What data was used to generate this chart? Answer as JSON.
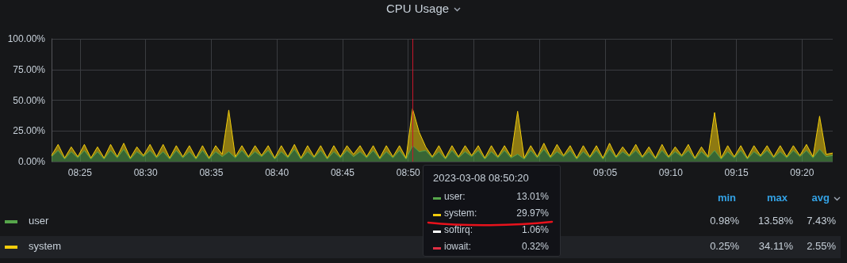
{
  "chart_data": {
    "type": "area",
    "title": "CPU Usage",
    "stacked": true,
    "grid": true,
    "marker": "none",
    "legend": "bottom",
    "xlim": [
      "2023-03-08T08:22:50",
      "2023-03-08T09:22:20"
    ],
    "x": [
      "2023-03-08T08:22:50",
      "2023-03-08T08:23:20",
      "2023-03-08T08:23:50",
      "2023-03-08T08:24:20",
      "2023-03-08T08:24:50",
      "2023-03-08T08:25:20",
      "2023-03-08T08:25:50",
      "2023-03-08T08:26:20",
      "2023-03-08T08:26:50",
      "2023-03-08T08:27:20",
      "2023-03-08T08:27:50",
      "2023-03-08T08:28:20",
      "2023-03-08T08:28:50",
      "2023-03-08T08:29:20",
      "2023-03-08T08:29:50",
      "2023-03-08T08:30:20",
      "2023-03-08T08:30:50",
      "2023-03-08T08:31:20",
      "2023-03-08T08:31:50",
      "2023-03-08T08:32:20",
      "2023-03-08T08:32:50",
      "2023-03-08T08:33:20",
      "2023-03-08T08:33:50",
      "2023-03-08T08:34:20",
      "2023-03-08T08:34:50",
      "2023-03-08T08:35:20",
      "2023-03-08T08:35:50",
      "2023-03-08T08:36:20",
      "2023-03-08T08:36:50",
      "2023-03-08T08:37:20",
      "2023-03-08T08:37:50",
      "2023-03-08T08:38:20",
      "2023-03-08T08:38:50",
      "2023-03-08T08:39:20",
      "2023-03-08T08:39:50",
      "2023-03-08T08:40:20",
      "2023-03-08T08:40:50",
      "2023-03-08T08:41:20",
      "2023-03-08T08:41:50",
      "2023-03-08T08:42:20",
      "2023-03-08T08:42:50",
      "2023-03-08T08:43:20",
      "2023-03-08T08:43:50",
      "2023-03-08T08:44:20",
      "2023-03-08T08:44:50",
      "2023-03-08T08:45:20",
      "2023-03-08T08:45:50",
      "2023-03-08T08:46:20",
      "2023-03-08T08:46:50",
      "2023-03-08T08:47:20",
      "2023-03-08T08:47:50",
      "2023-03-08T08:48:20",
      "2023-03-08T08:48:50",
      "2023-03-08T08:49:20",
      "2023-03-08T08:49:50",
      "2023-03-08T08:50:20",
      "2023-03-08T08:50:50",
      "2023-03-08T08:51:20",
      "2023-03-08T08:51:50",
      "2023-03-08T08:52:20",
      "2023-03-08T08:52:50",
      "2023-03-08T08:53:20",
      "2023-03-08T08:53:50",
      "2023-03-08T08:54:20",
      "2023-03-08T08:54:50",
      "2023-03-08T08:55:20",
      "2023-03-08T08:55:50",
      "2023-03-08T08:56:20",
      "2023-03-08T08:56:50",
      "2023-03-08T08:57:20",
      "2023-03-08T08:57:50",
      "2023-03-08T08:58:20",
      "2023-03-08T08:58:50",
      "2023-03-08T08:59:20",
      "2023-03-08T08:59:50",
      "2023-03-08T09:00:20",
      "2023-03-08T09:00:50",
      "2023-03-08T09:01:20",
      "2023-03-08T09:01:50",
      "2023-03-08T09:02:20",
      "2023-03-08T09:02:50",
      "2023-03-08T09:03:20",
      "2023-03-08T09:03:50",
      "2023-03-08T09:04:20",
      "2023-03-08T09:04:50",
      "2023-03-08T09:05:20",
      "2023-03-08T09:05:50",
      "2023-03-08T09:06:20",
      "2023-03-08T09:06:50",
      "2023-03-08T09:07:20",
      "2023-03-08T09:07:50",
      "2023-03-08T09:08:20",
      "2023-03-08T09:08:50",
      "2023-03-08T09:09:20",
      "2023-03-08T09:09:50",
      "2023-03-08T09:10:20",
      "2023-03-08T09:10:50",
      "2023-03-08T09:11:20",
      "2023-03-08T09:11:50",
      "2023-03-08T09:12:20",
      "2023-03-08T09:12:50",
      "2023-03-08T09:13:20",
      "2023-03-08T09:13:50",
      "2023-03-08T09:14:20",
      "2023-03-08T09:14:50",
      "2023-03-08T09:15:20",
      "2023-03-08T09:15:50",
      "2023-03-08T09:16:20",
      "2023-03-08T09:16:50",
      "2023-03-08T09:17:20",
      "2023-03-08T09:17:50",
      "2023-03-08T09:18:20",
      "2023-03-08T09:18:50",
      "2023-03-08T09:19:20",
      "2023-03-08T09:19:50",
      "2023-03-08T09:20:20",
      "2023-03-08T09:20:50",
      "2023-03-08T09:21:20",
      "2023-03-08T09:21:50",
      "2023-03-08T09:22:20"
    ],
    "xticks": [
      {
        "value": "2023-03-08T08:25",
        "label": "08:25"
      },
      {
        "value": "2023-03-08T08:30",
        "label": "08:30"
      },
      {
        "value": "2023-03-08T08:35",
        "label": "08:35"
      },
      {
        "value": "2023-03-08T08:40",
        "label": "08:40"
      },
      {
        "value": "2023-03-08T08:45",
        "label": "08:45"
      },
      {
        "value": "2023-03-08T08:50",
        "label": "08:50"
      },
      {
        "value": "2023-03-08T08:55",
        "label": null
      },
      {
        "value": "2023-03-08T09:00",
        "label": null
      },
      {
        "value": "2023-03-08T09:05",
        "label": "09:05"
      },
      {
        "value": "2023-03-08T09:10",
        "label": "09:10"
      },
      {
        "value": "2023-03-08T09:15",
        "label": "09:15"
      },
      {
        "value": "2023-03-08T09:20",
        "label": "09:20"
      }
    ],
    "ylim": [
      0,
      100
    ],
    "yticks": [
      {
        "value": 0,
        "label": "0.00%"
      },
      {
        "value": 25,
        "label": "25.00%"
      },
      {
        "value": 50,
        "label": "50.00%"
      },
      {
        "value": 75,
        "label": "75.00%"
      },
      {
        "value": 100,
        "label": "100.00%"
      }
    ],
    "ref_lines": [
      {
        "axis": "x",
        "value": "2023-03-08T08:50:20",
        "color": "#c4162a"
      }
    ],
    "series": [
      {
        "name": "user",
        "color": "#56a64b",
        "values": [
          4,
          9,
          2,
          8,
          3,
          9,
          2,
          8,
          2,
          9,
          3,
          10,
          2,
          8,
          4,
          9,
          3,
          8,
          2,
          9,
          3,
          8,
          2,
          9,
          2,
          8,
          4,
          8,
          3,
          9,
          3,
          8,
          4,
          9,
          2,
          8,
          3,
          10,
          2,
          8,
          3,
          9,
          2,
          8,
          3,
          9,
          4,
          8,
          3,
          9,
          2,
          8,
          3,
          9,
          2,
          13.01,
          8,
          9,
          3,
          8,
          2,
          9,
          3,
          8,
          4,
          9,
          2,
          8,
          3,
          9,
          3,
          6,
          2,
          9,
          3,
          10,
          3,
          8,
          4,
          9,
          2,
          8,
          3,
          9,
          2,
          10,
          3,
          8,
          4,
          9,
          3,
          8,
          2,
          9,
          3,
          8,
          4,
          9,
          2,
          8,
          3,
          9,
          2,
          8,
          3,
          9,
          2,
          8,
          4,
          9,
          3,
          8,
          3,
          9,
          4,
          9,
          3,
          10,
          4,
          5
        ]
      },
      {
        "name": "system",
        "color": "#f2cc0c",
        "values": [
          1,
          5,
          1,
          4,
          1,
          5,
          1,
          4,
          1,
          5,
          1,
          5,
          1,
          4,
          1,
          5,
          1,
          6,
          1,
          4,
          1,
          5,
          1,
          4,
          1,
          5,
          2,
          34,
          1,
          4,
          1,
          5,
          1,
          4,
          1,
          5,
          1,
          4,
          1,
          5,
          1,
          4,
          1,
          5,
          1,
          4,
          2,
          5,
          1,
          4,
          1,
          5,
          1,
          4,
          1,
          29.97,
          16,
          3,
          1,
          5,
          1,
          4,
          1,
          5,
          1,
          4,
          1,
          5,
          1,
          4,
          1,
          35,
          1,
          4,
          1,
          5,
          1,
          6,
          1,
          4,
          1,
          5,
          1,
          4,
          1,
          5,
          1,
          4,
          1,
          5,
          1,
          4,
          1,
          5,
          1,
          4,
          1,
          5,
          1,
          4,
          1,
          31,
          1,
          5,
          1,
          4,
          1,
          5,
          1,
          4,
          1,
          5,
          1,
          4,
          1,
          5,
          1,
          27,
          2,
          2
        ]
      }
    ],
    "annotations": [
      "min",
      "max",
      "avg",
      "0.98%",
      "13.58%",
      "7.43%",
      "0.25%",
      "34.11%",
      "2.55%",
      "2023-03-08 08:50:20",
      "user:",
      "13.01%",
      "system:",
      "29.97%",
      "softirq:",
      "1.06%",
      "iowait:",
      "0.32%"
    ]
  }
}
